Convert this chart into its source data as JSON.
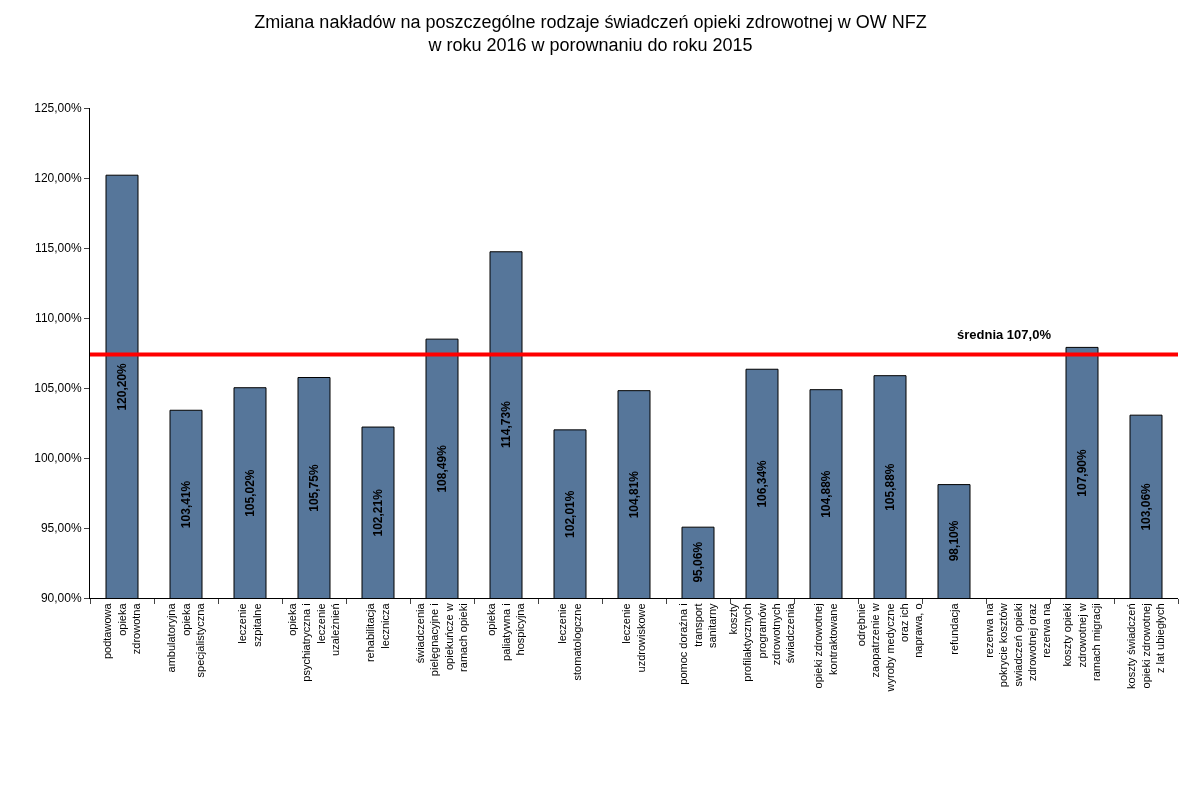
{
  "chart_data": {
    "type": "bar",
    "title": "Zmiana nakładów na poszczególne rodzaje świadczeń opieki zdrowotnej w OW NFZ\nw roku 2016 w porownaniu do roku 2015",
    "categories": [
      "podtawowa\nopieka\nzdrowotna",
      "ambulatoryjna\nopieka\nspecjalistyczna",
      "leczenie\nszpitalne",
      "opieka\npsychiatryczna i\nleczenie\nuzależnień",
      "rehabilitacja\nlecznicza",
      "świadczenia\npielęgnacyjne i\nopiekuńcze w\nramach opieki",
      "opieka\npaliatywna i\nhospicyjna",
      "leczenie\nstomatologczne",
      "leczenie\nuzdrowiskowe",
      "pomoc doraźna i\ntransport\nsanitarny",
      "koszty\nprofilaktycznych\nprogramów\nzdrowotnych\nświadczenia",
      "opieki zdrowotnej\nkontraktowane",
      "odrębnie\nzaopatrzenie w\nwyroby medyczne\noraz ich\nnaprawa, o",
      "refundacja",
      "rezerwa na\npokrycie kosztów\nswiadczeń opieki\nzdrowotnej oraz\nrezerwa na",
      "koszty opieki\nzdrowotnej w\nramach migracji",
      "koszty świadczeń\nopieki zdrowotnej\nz lat ubiegłych"
    ],
    "values": [
      120.2,
      103.41,
      105.02,
      105.75,
      102.21,
      108.49,
      114.73,
      102.01,
      104.81,
      95.06,
      106.34,
      104.88,
      105.88,
      98.1,
      null,
      107.9,
      103.06
    ],
    "value_labels": [
      "120,20%",
      "103,41%",
      "105,02%",
      "105,75%",
      "102,21%",
      "108,49%",
      "114,73%",
      "102,01%",
      "104,81%",
      "95,06%",
      "106,34%",
      "104,88%",
      "105,88%",
      "98,10%",
      null,
      "107,90%",
      "103,06%"
    ],
    "color": "#56769a",
    "ylim": [
      90,
      125
    ],
    "yticks": [
      {
        "value": 90,
        "label": "90,00%"
      },
      {
        "value": 95,
        "label": "95,00%"
      },
      {
        "value": 100,
        "label": "100,00%"
      },
      {
        "value": 105,
        "label": "105,00%"
      },
      {
        "value": 110,
        "label": "110,00%"
      },
      {
        "value": 115,
        "label": "115,00%"
      },
      {
        "value": 120,
        "label": "120,00%"
      },
      {
        "value": 125,
        "label": "125,00%"
      }
    ],
    "ref_lines": [
      {
        "axis": "y",
        "value": 107.4,
        "label": "średnia 107,0%",
        "color": "#ff0000"
      }
    ],
    "grid": false
  }
}
